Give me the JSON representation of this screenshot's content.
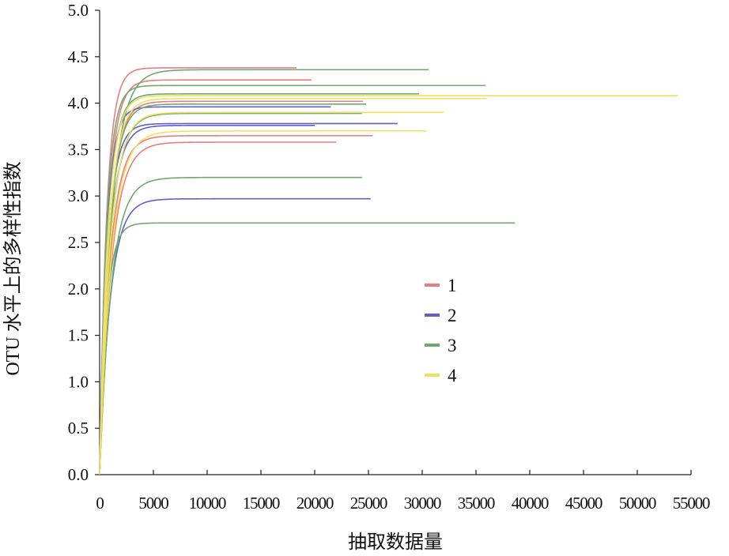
{
  "chart_data": {
    "type": "line",
    "ylabel": "OTU 水平上的多样性指数",
    "xlabel": "抽取数据量",
    "xlim": [
      0,
      55000
    ],
    "ylim": [
      0,
      5
    ],
    "x_ticks": [
      "0",
      "5000",
      "10000",
      "15000",
      "20000",
      "25000",
      "30000",
      "35000",
      "40000",
      "45000",
      "50000",
      "55000"
    ],
    "y_ticks": [
      "0.0",
      "0.5",
      "1.0",
      "1.5",
      "2.0",
      "2.5",
      "3.0",
      "3.5",
      "4.0",
      "4.5",
      "5.0"
    ],
    "grid": false,
    "legend_position": "center-right",
    "groups": [
      {
        "name": "1",
        "color": "#e57f7f"
      },
      {
        "name": "2",
        "color": "#6060c8"
      },
      {
        "name": "3",
        "color": "#70a870"
      },
      {
        "name": "4",
        "color": "#f0e060"
      }
    ],
    "series": [
      {
        "group": "1",
        "color": "#e57f7f",
        "plateau": 4.38,
        "xmax": 18300
      },
      {
        "group": "1",
        "color": "#e57f7f",
        "plateau": 4.25,
        "xmax": 19700
      },
      {
        "group": "1",
        "color": "#e57f7f",
        "plateau": 4.02,
        "xmax": 24500
      },
      {
        "group": "1",
        "color": "#e57f7f",
        "plateau": 3.65,
        "xmax": 25400
      },
      {
        "group": "1",
        "color": "#e57f7f",
        "plateau": 3.58,
        "xmax": 22000
      },
      {
        "group": "2",
        "color": "#6060c8",
        "plateau": 3.96,
        "xmax": 21500
      },
      {
        "group": "2",
        "color": "#6060c8",
        "plateau": 3.78,
        "xmax": 27700
      },
      {
        "group": "2",
        "color": "#6060c8",
        "plateau": 3.76,
        "xmax": 20000
      },
      {
        "group": "2",
        "color": "#6060c8",
        "plateau": 2.97,
        "xmax": 25200
      },
      {
        "group": "3",
        "color": "#70a870",
        "plateau": 4.36,
        "xmax": 30600
      },
      {
        "group": "3",
        "color": "#70a870",
        "plateau": 4.19,
        "xmax": 35900
      },
      {
        "group": "3",
        "color": "#70a870",
        "plateau": 4.1,
        "xmax": 29700
      },
      {
        "group": "3",
        "color": "#70a870",
        "plateau": 3.99,
        "xmax": 24800
      },
      {
        "group": "3",
        "color": "#70a870",
        "plateau": 3.89,
        "xmax": 24400
      },
      {
        "group": "3",
        "color": "#70a870",
        "plateau": 3.2,
        "xmax": 24400
      },
      {
        "group": "3",
        "color": "#70a870",
        "plateau": 2.71,
        "xmax": 38600
      },
      {
        "group": "4",
        "color": "#f0e060",
        "plateau": 4.08,
        "xmax": 53800
      },
      {
        "group": "4",
        "color": "#f0e060",
        "plateau": 4.05,
        "xmax": 36000
      },
      {
        "group": "4",
        "color": "#f0e060",
        "plateau": 3.9,
        "xmax": 32000
      },
      {
        "group": "4",
        "color": "#f0e060",
        "plateau": 3.7,
        "xmax": 30400
      }
    ]
  }
}
